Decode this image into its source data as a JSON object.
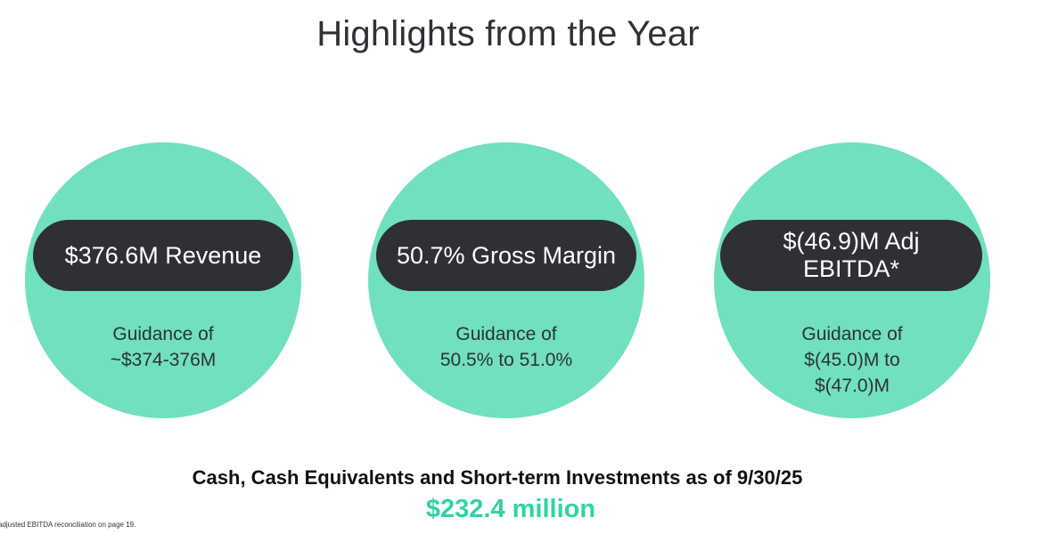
{
  "page": {
    "title": "Highlights from the Year"
  },
  "highlights": [
    {
      "headline": "$376.6M Revenue",
      "guidance": "Guidance of\n~$374-376M"
    },
    {
      "headline": "50.7% Gross Margin",
      "guidance": "Guidance of\n50.5% to 51.0%"
    },
    {
      "headline": "$(46.9)M Adj\nEBITDA*",
      "guidance": "Guidance of\n$(45.0)M to\n$(47.0)M"
    }
  ],
  "cash": {
    "label": "Cash, Cash Equivalents and Short-term Investments as of 9/30/25",
    "value": "$232.4 million"
  },
  "footnote": "adjusted EBITDA reconciliation on page 19.",
  "colors": {
    "circle": "#71e0be",
    "pill": "#2e3034",
    "accent_value": "#2fd3a1"
  }
}
